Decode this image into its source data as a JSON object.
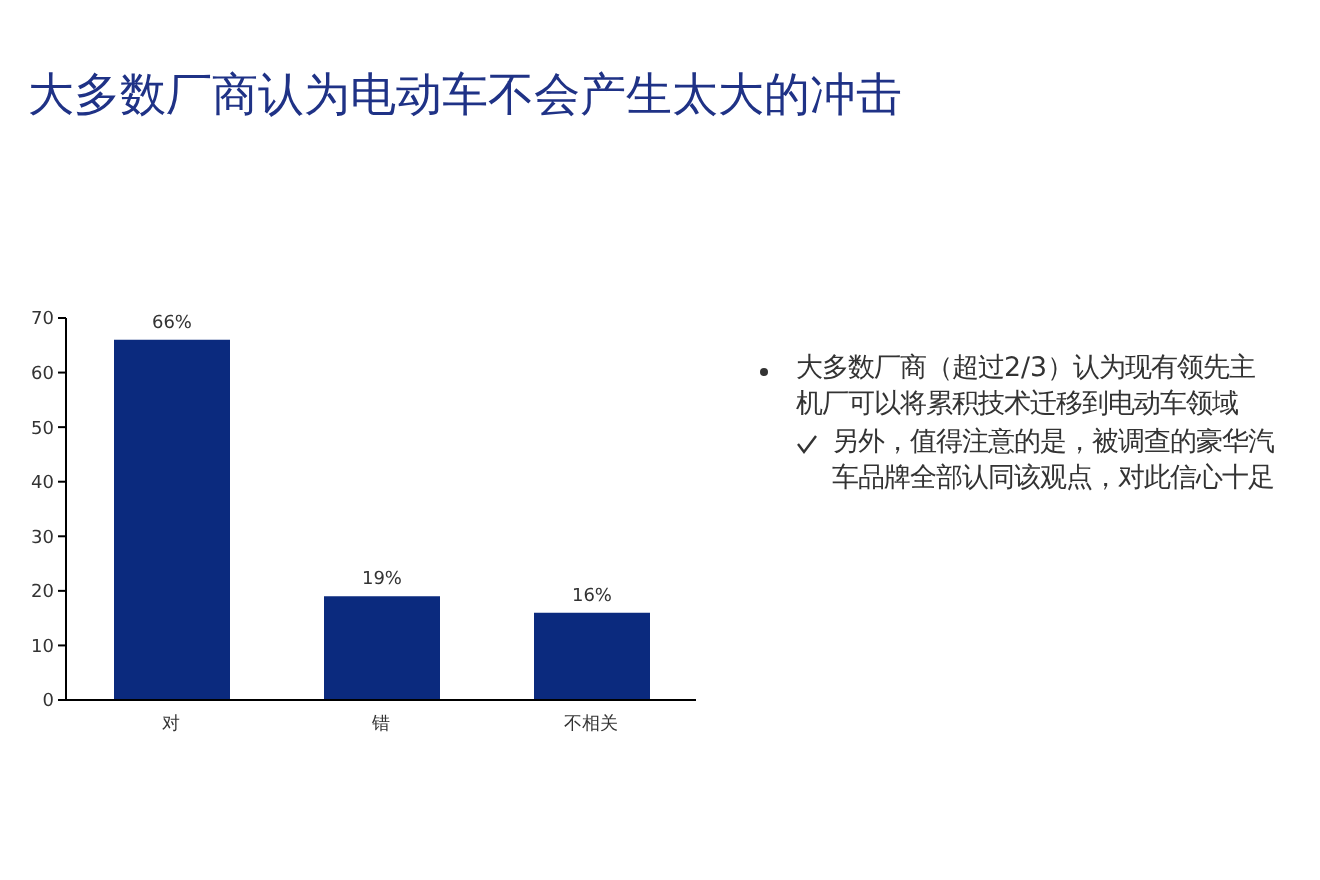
{
  "chart_data": {
    "type": "bar",
    "title": "大多数厂商认为电动车不会产生太大的冲击",
    "categories": [
      "对",
      "错",
      "不相关"
    ],
    "values": [
      66,
      19,
      16
    ],
    "value_labels": [
      "66%",
      "19%",
      "16%"
    ],
    "color": "#0b2a7e",
    "ylim": [
      0,
      70
    ],
    "yticks": [
      0,
      10,
      20,
      30,
      40,
      50,
      60,
      70
    ],
    "annotations": [
      "大多数厂商（超过2/3）认为现有领先主机厂可以将累积技术迁移到电动车领域",
      "另外，值得注意的是，被调查的豪华汽车品牌全部认同该观点，对此信心十足"
    ]
  }
}
